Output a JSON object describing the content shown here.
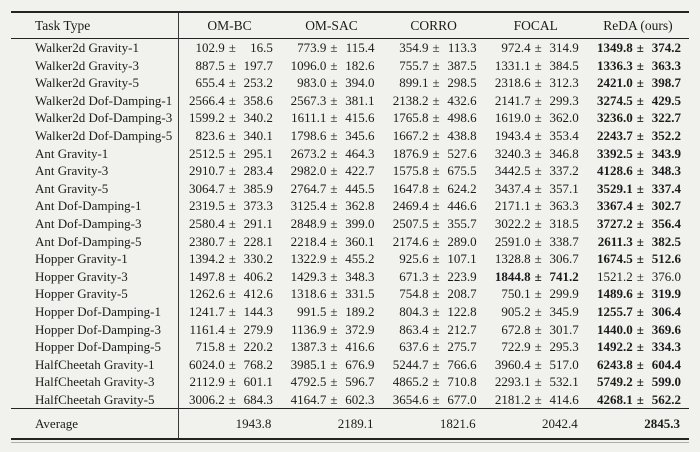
{
  "page": {
    "background_color": "#f1f1ee",
    "text_color": "#1b1b1b",
    "rule_color": "#242424"
  },
  "table": {
    "plus_minus": "±",
    "columns": [
      "Task Type",
      "OM-BC",
      "OM-SAC",
      "CORRO",
      "FOCAL",
      "ReDA (ours)"
    ],
    "rows": [
      {
        "task": "Walker2d Gravity-1",
        "values": [
          {
            "mean": "102.9",
            "std": "16.5"
          },
          {
            "mean": "773.9",
            "std": "115.4"
          },
          {
            "mean": "354.9",
            "std": "113.3"
          },
          {
            "mean": "972.4",
            "std": "314.9"
          },
          {
            "mean": "1349.8",
            "std": "374.2"
          }
        ],
        "bold_index": 4
      },
      {
        "task": "Walker2d Gravity-3",
        "values": [
          {
            "mean": "887.5",
            "std": "197.7"
          },
          {
            "mean": "1096.0",
            "std": "182.6"
          },
          {
            "mean": "755.7",
            "std": "387.5"
          },
          {
            "mean": "1331.1",
            "std": "384.5"
          },
          {
            "mean": "1336.3",
            "std": "363.3"
          }
        ],
        "bold_index": 4
      },
      {
        "task": "Walker2d Gravity-5",
        "values": [
          {
            "mean": "655.4",
            "std": "253.2"
          },
          {
            "mean": "983.0",
            "std": "394.0"
          },
          {
            "mean": "899.1",
            "std": "298.5"
          },
          {
            "mean": "2318.6",
            "std": "312.3"
          },
          {
            "mean": "2421.0",
            "std": "398.7"
          }
        ],
        "bold_index": 4
      },
      {
        "task": "Walker2d Dof-Damping-1",
        "values": [
          {
            "mean": "2566.4",
            "std": "358.6"
          },
          {
            "mean": "2567.3",
            "std": "381.1"
          },
          {
            "mean": "2138.2",
            "std": "432.6"
          },
          {
            "mean": "2141.7",
            "std": "299.3"
          },
          {
            "mean": "3274.5",
            "std": "429.5"
          }
        ],
        "bold_index": 4
      },
      {
        "task": "Walker2d Dof-Damping-3",
        "values": [
          {
            "mean": "1599.2",
            "std": "340.2"
          },
          {
            "mean": "1611.1",
            "std": "415.6"
          },
          {
            "mean": "1765.8",
            "std": "498.6"
          },
          {
            "mean": "1619.0",
            "std": "362.0"
          },
          {
            "mean": "3236.0",
            "std": "322.7"
          }
        ],
        "bold_index": 4
      },
      {
        "task": "Walker2d Dof-Damping-5",
        "values": [
          {
            "mean": "823.6",
            "std": "340.1"
          },
          {
            "mean": "1798.6",
            "std": "345.6"
          },
          {
            "mean": "1667.2",
            "std": "438.8"
          },
          {
            "mean": "1943.4",
            "std": "353.4"
          },
          {
            "mean": "2243.7",
            "std": "352.2"
          }
        ],
        "bold_index": 4
      },
      {
        "task": "Ant Gravity-1",
        "values": [
          {
            "mean": "2512.5",
            "std": "295.1"
          },
          {
            "mean": "2673.2",
            "std": "464.3"
          },
          {
            "mean": "1876.9",
            "std": "527.6"
          },
          {
            "mean": "3240.3",
            "std": "346.8"
          },
          {
            "mean": "3392.5",
            "std": "343.9"
          }
        ],
        "bold_index": 4
      },
      {
        "task": "Ant Gravity-3",
        "values": [
          {
            "mean": "2910.7",
            "std": "283.4"
          },
          {
            "mean": "2982.0",
            "std": "422.7"
          },
          {
            "mean": "1575.8",
            "std": "675.5"
          },
          {
            "mean": "3442.5",
            "std": "337.2"
          },
          {
            "mean": "4128.6",
            "std": "348.3"
          }
        ],
        "bold_index": 4
      },
      {
        "task": "Ant Gravity-5",
        "values": [
          {
            "mean": "3064.7",
            "std": "385.9"
          },
          {
            "mean": "2764.7",
            "std": "445.5"
          },
          {
            "mean": "1647.8",
            "std": "624.2"
          },
          {
            "mean": "3437.4",
            "std": "357.1"
          },
          {
            "mean": "3529.1",
            "std": "337.4"
          }
        ],
        "bold_index": 4
      },
      {
        "task": "Ant Dof-Damping-1",
        "values": [
          {
            "mean": "2319.5",
            "std": "373.3"
          },
          {
            "mean": "3125.4",
            "std": "362.8"
          },
          {
            "mean": "2469.4",
            "std": "446.6"
          },
          {
            "mean": "2171.1",
            "std": "363.3"
          },
          {
            "mean": "3367.4",
            "std": "302.7"
          }
        ],
        "bold_index": 4
      },
      {
        "task": "Ant Dof-Damping-3",
        "values": [
          {
            "mean": "2580.4",
            "std": "291.1"
          },
          {
            "mean": "2848.9",
            "std": "399.0"
          },
          {
            "mean": "2507.5",
            "std": "355.7"
          },
          {
            "mean": "3022.2",
            "std": "318.5"
          },
          {
            "mean": "3727.2",
            "std": "356.4"
          }
        ],
        "bold_index": 4
      },
      {
        "task": "Ant Dof-Damping-5",
        "values": [
          {
            "mean": "2380.7",
            "std": "228.1"
          },
          {
            "mean": "2218.4",
            "std": "360.1"
          },
          {
            "mean": "2174.6",
            "std": "289.0"
          },
          {
            "mean": "2591.0",
            "std": "338.7"
          },
          {
            "mean": "2611.3",
            "std": "382.5"
          }
        ],
        "bold_index": 4
      },
      {
        "task": "Hopper Gravity-1",
        "values": [
          {
            "mean": "1394.2",
            "std": "330.2"
          },
          {
            "mean": "1322.9",
            "std": "455.2"
          },
          {
            "mean": "925.6",
            "std": "107.1"
          },
          {
            "mean": "1328.8",
            "std": "306.7"
          },
          {
            "mean": "1674.5",
            "std": "512.6"
          }
        ],
        "bold_index": 4
      },
      {
        "task": "Hopper Gravity-3",
        "values": [
          {
            "mean": "1497.8",
            "std": "406.2"
          },
          {
            "mean": "1429.3",
            "std": "348.3"
          },
          {
            "mean": "671.3",
            "std": "223.9"
          },
          {
            "mean": "1844.8",
            "std": "741.2"
          },
          {
            "mean": "1521.2",
            "std": "376.0"
          }
        ],
        "bold_index": 3
      },
      {
        "task": "Hopper Gravity-5",
        "values": [
          {
            "mean": "1262.6",
            "std": "412.6"
          },
          {
            "mean": "1318.6",
            "std": "331.5"
          },
          {
            "mean": "754.8",
            "std": "208.7"
          },
          {
            "mean": "750.1",
            "std": "299.9"
          },
          {
            "mean": "1489.6",
            "std": "319.9"
          }
        ],
        "bold_index": 4
      },
      {
        "task": "Hopper Dof-Damping-1",
        "values": [
          {
            "mean": "1241.7",
            "std": "144.3"
          },
          {
            "mean": "991.5",
            "std": "189.2"
          },
          {
            "mean": "804.3",
            "std": "122.8"
          },
          {
            "mean": "905.2",
            "std": "345.9"
          },
          {
            "mean": "1255.7",
            "std": "306.4"
          }
        ],
        "bold_index": 4
      },
      {
        "task": "Hopper Dof-Damping-3",
        "values": [
          {
            "mean": "1161.4",
            "std": "279.9"
          },
          {
            "mean": "1136.9",
            "std": "372.9"
          },
          {
            "mean": "863.4",
            "std": "212.7"
          },
          {
            "mean": "672.8",
            "std": "301.7"
          },
          {
            "mean": "1440.0",
            "std": "369.6"
          }
        ],
        "bold_index": 4
      },
      {
        "task": "Hopper Dof-Damping-5",
        "values": [
          {
            "mean": "715.8",
            "std": "220.2"
          },
          {
            "mean": "1387.3",
            "std": "416.6"
          },
          {
            "mean": "637.6",
            "std": "275.7"
          },
          {
            "mean": "722.9",
            "std": "295.3"
          },
          {
            "mean": "1492.2",
            "std": "334.3"
          }
        ],
        "bold_index": 4
      },
      {
        "task": "HalfCheetah Gravity-1",
        "values": [
          {
            "mean": "6024.0",
            "std": "768.2"
          },
          {
            "mean": "3985.1",
            "std": "676.9"
          },
          {
            "mean": "5244.7",
            "std": "766.6"
          },
          {
            "mean": "3960.4",
            "std": "517.0"
          },
          {
            "mean": "6243.8",
            "std": "604.4"
          }
        ],
        "bold_index": 4
      },
      {
        "task": "HalfCheetah Gravity-3",
        "values": [
          {
            "mean": "2112.9",
            "std": "601.1"
          },
          {
            "mean": "4792.5",
            "std": "596.7"
          },
          {
            "mean": "4865.2",
            "std": "710.8"
          },
          {
            "mean": "2293.1",
            "std": "532.1"
          },
          {
            "mean": "5749.2",
            "std": "599.0"
          }
        ],
        "bold_index": 4
      },
      {
        "task": "HalfCheetah Gravity-5",
        "values": [
          {
            "mean": "3006.2",
            "std": "684.3"
          },
          {
            "mean": "4164.7",
            "std": "602.3"
          },
          {
            "mean": "3654.6",
            "std": "677.0"
          },
          {
            "mean": "2181.2",
            "std": "414.6"
          },
          {
            "mean": "4268.1",
            "std": "562.2"
          }
        ],
        "bold_index": 4
      }
    ],
    "footer": {
      "label": "Average",
      "values": [
        "1943.8",
        "2189.1",
        "1821.6",
        "2042.4",
        "2845.3"
      ],
      "bold_index": 4
    }
  }
}
